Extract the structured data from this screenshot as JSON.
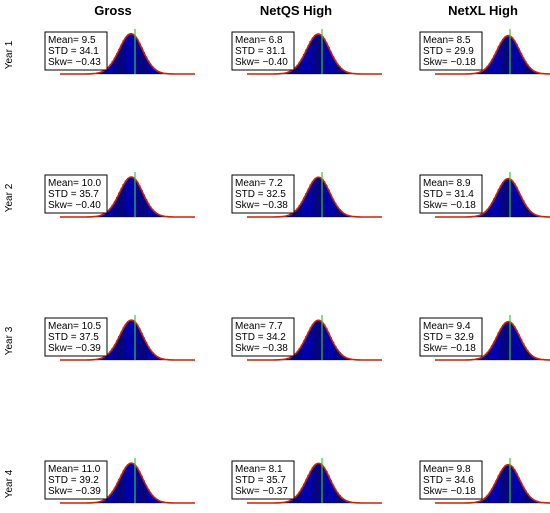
{
  "chart_data": {
    "type": "bar",
    "grid": false,
    "columns": [
      "Gross",
      "NetQS High",
      "NetXL High"
    ],
    "rows": [
      "Year 1",
      "Year 2",
      "Year 3",
      "Year 4"
    ],
    "stat_labels": {
      "mean": "Mean=",
      "std": "STD =",
      "skew": "Skw="
    },
    "colors": {
      "bars": "#0000aa",
      "density_curve": "#cc2200",
      "mean_line": "#33cc33",
      "stat_box_border": "#000000"
    },
    "panels": [
      [
        {
          "mean": "9.5",
          "std": "34.1",
          "skew": "−0.43"
        },
        {
          "mean": "6.8",
          "std": "31.1",
          "skew": "−0.40"
        },
        {
          "mean": "8.5",
          "std": "29.9",
          "skew": "−0.18"
        }
      ],
      [
        {
          "mean": "10.0",
          "std": "35.7",
          "skew": "−0.40"
        },
        {
          "mean": "7.2",
          "std": "32.5",
          "skew": "−0.38"
        },
        {
          "mean": "8.9",
          "std": "31.4",
          "skew": "−0.18"
        }
      ],
      [
        {
          "mean": "10.5",
          "std": "37.5",
          "skew": "−0.39"
        },
        {
          "mean": "7.7",
          "std": "34.2",
          "skew": "−0.38"
        },
        {
          "mean": "9.4",
          "std": "32.9",
          "skew": "−0.18"
        }
      ],
      [
        {
          "mean": "11.0",
          "std": "39.2",
          "skew": "−0.39"
        },
        {
          "mean": "8.1",
          "std": "35.7",
          "skew": "−0.37"
        },
        {
          "mean": "9.8",
          "std": "34.6",
          "skew": "−0.18"
        }
      ]
    ]
  }
}
